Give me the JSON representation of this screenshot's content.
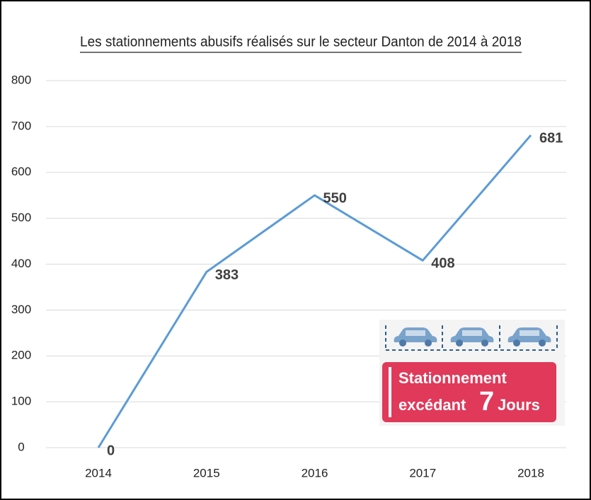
{
  "chart_data": {
    "type": "line",
    "title": "Les stationnements abusifs réalisés sur le secteur Danton de 2014 à 2018",
    "categories": [
      "2014",
      "2015",
      "2016",
      "2017",
      "2018"
    ],
    "values": [
      0,
      383,
      550,
      408,
      681
    ],
    "color": "#5b9bd5",
    "ylim": [
      0,
      800
    ],
    "yticks": [
      0,
      100,
      200,
      300,
      400,
      500,
      600,
      700,
      800
    ],
    "grid": true,
    "annotation": {
      "line1": "Stationnement",
      "line2": "excédant",
      "number": "7",
      "unit": "Jours"
    }
  }
}
